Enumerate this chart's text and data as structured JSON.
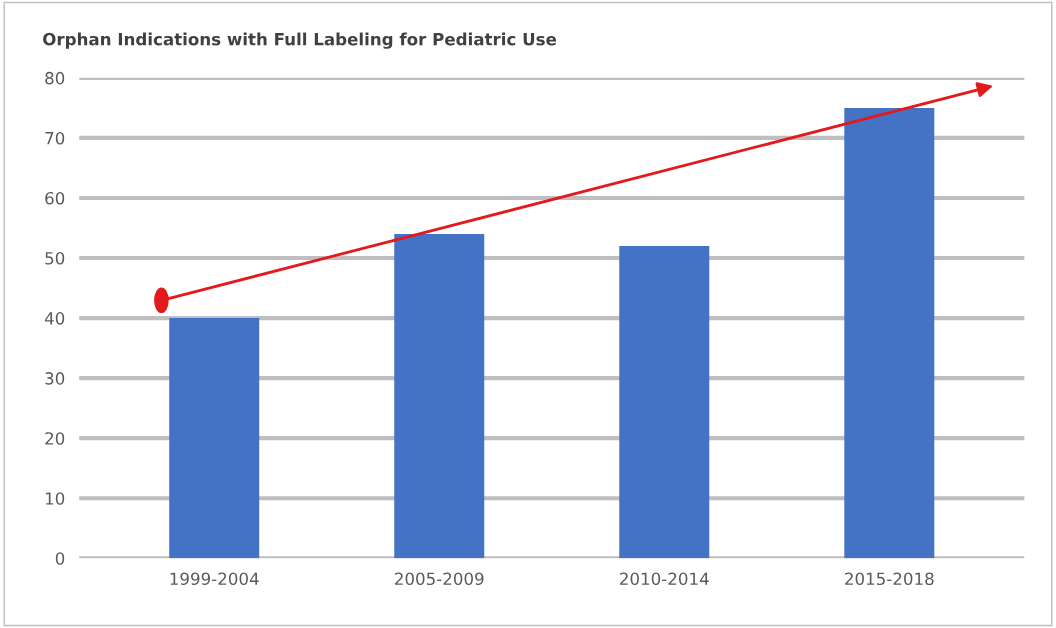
{
  "chart_data": {
    "type": "bar",
    "title": "Orphan Indications with Full Labeling for Pediatric Use",
    "categories": [
      "1999-2004",
      "2005-2009",
      "2010-2014",
      "2015-2018"
    ],
    "values": [
      40,
      54,
      52,
      75
    ],
    "color": "#4472c4",
    "ylim": [
      0,
      80
    ],
    "yticks": [
      0,
      10,
      20,
      30,
      40,
      50,
      60,
      70,
      80
    ],
    "grid": "y"
  }
}
